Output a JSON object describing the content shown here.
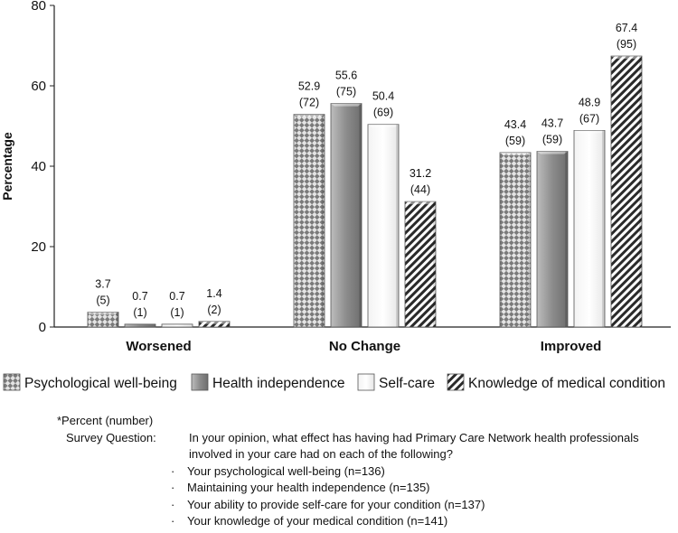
{
  "chart_data": {
    "type": "bar",
    "categories": [
      "Worsened",
      "No Change",
      "Improved"
    ],
    "ylabel": "Percentage",
    "xlabel": "",
    "ylim": [
      0,
      80
    ],
    "yticks": [
      0,
      20,
      40,
      60,
      80
    ],
    "grid": false,
    "legend_position": "bottom",
    "series": [
      {
        "name": "Psychological well-being",
        "pattern": "checker",
        "color": "#808080",
        "values": [
          3.7,
          52.9,
          43.4
        ],
        "counts": [
          "(5)",
          "(72)",
          "(59)"
        ]
      },
      {
        "name": "Health independence",
        "pattern": "solid",
        "color": "#9a9a9a",
        "values": [
          0.7,
          55.6,
          43.7
        ],
        "counts": [
          "(1)",
          "(75)",
          "(59)"
        ]
      },
      {
        "name": "Self-care",
        "pattern": "white",
        "color": "#ffffff",
        "values": [
          0.7,
          50.4,
          48.9
        ],
        "counts": [
          "(1)",
          "(69)",
          "(67)"
        ]
      },
      {
        "name": "Knowledge of medical condition",
        "pattern": "hatch",
        "color": "#333333",
        "values": [
          1.4,
          31.2,
          67.4
        ],
        "counts": [
          "(2)",
          "(44)",
          "(95)"
        ]
      }
    ]
  },
  "notes": {
    "percent_note": "*Percent (number)",
    "question_label": "Survey Question:",
    "question_text": "In your opinion, what effect has having had Primary Care Network health professionals involved in your care had on each of the following?",
    "bullet_symbol": "·",
    "bullets": [
      "Your psychological well-being (n=136)",
      "Maintaining your health independence (n=135)",
      "Your ability to provide self-care for your condition (n=137)",
      "Your knowledge of your medical condition (n=141)"
    ]
  }
}
